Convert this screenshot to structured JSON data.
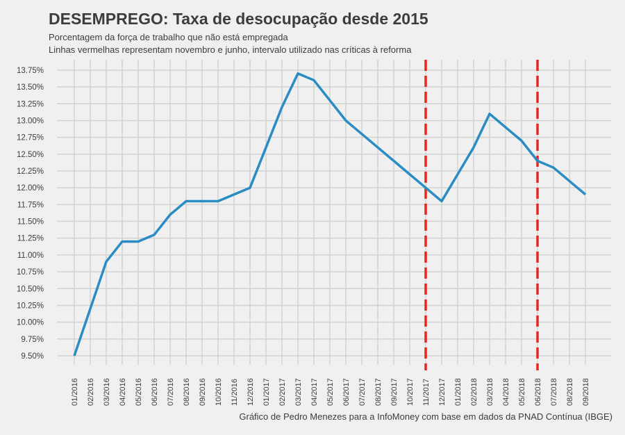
{
  "chart_data": {
    "type": "line",
    "title": "DESEMPREGO: Taxa de desocupação desde 2015",
    "subtitle": [
      "Porcentagem da força de trabalho que não está empregada",
      "Linhas vermelhas representam novembro e junho, intervalo utilizado nas críticas à reforma"
    ],
    "caption": "Gráfico de Pedro Menezes para a InfoMoney com base em dados da PNAD Contínua (IBGE)",
    "xlabel": "",
    "ylabel": "",
    "categories": [
      "01/2016",
      "02/2016",
      "03/2016",
      "04/2016",
      "05/2016",
      "06/2016",
      "07/2016",
      "08/2016",
      "09/2016",
      "10/2016",
      "11/2016",
      "12/2016",
      "01/2017",
      "02/2017",
      "03/2017",
      "04/2017",
      "05/2017",
      "06/2017",
      "07/2017",
      "08/2017",
      "09/2017",
      "10/2017",
      "11/2017",
      "12/2017",
      "01/2018",
      "02/2018",
      "03/2018",
      "04/2018",
      "05/2018",
      "06/2018",
      "07/2018",
      "08/2018",
      "09/2018"
    ],
    "series": [
      {
        "name": "Taxa de desocupação",
        "color": "#2b8cc4",
        "values": [
          9.5,
          10.2,
          10.9,
          11.2,
          11.2,
          11.3,
          11.6,
          11.8,
          11.8,
          11.8,
          11.9,
          12.0,
          12.6,
          13.2,
          13.7,
          13.6,
          13.3,
          13.0,
          12.8,
          12.6,
          12.4,
          12.2,
          12.0,
          11.8,
          12.2,
          12.6,
          13.1,
          12.9,
          12.7,
          12.4,
          12.3,
          12.1,
          11.9
        ]
      }
    ],
    "reference_lines": [
      {
        "x": "11/2017",
        "color": "#e8261f",
        "style": "dashed"
      },
      {
        "x": "06/2018",
        "color": "#e8261f",
        "style": "dashed"
      }
    ],
    "yticks": [
      "9.50%",
      "9.75%",
      "10.00%",
      "10.25%",
      "10.50%",
      "10.75%",
      "11.00%",
      "11.25%",
      "11.50%",
      "11.75%",
      "12.00%",
      "12.25%",
      "12.50%",
      "12.75%",
      "13.00%",
      "13.25%",
      "13.50%",
      "13.75%"
    ],
    "ylim": [
      9.5,
      13.75
    ],
    "grid": true
  }
}
